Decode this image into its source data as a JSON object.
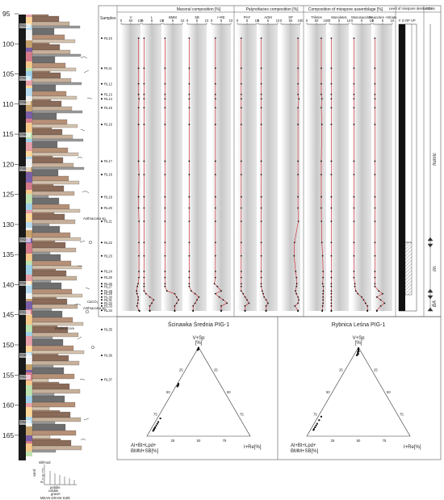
{
  "depth_axis": {
    "ticks": [
      95,
      100,
      105,
      110,
      115,
      120,
      125,
      130,
      135,
      140,
      145,
      150,
      155,
      160,
      165
    ]
  },
  "facies_labels": [
    "FA1",
    "FA4",
    "FA6",
    "FA6",
    "FA5",
    "FA3",
    "FA4",
    "FA1",
    "FA5",
    "FA1",
    "FA4"
  ],
  "lithology_notes": {
    "anthracosia_upper": "Anthracosia sp.",
    "calc": "CaCO₃",
    "anthracosia_lower": "Anthracosia sp.",
    "crushed": "crushed core"
  },
  "grain_size_legend": {
    "labels": [
      "silt/mud",
      "c",
      "f",
      "m",
      "c",
      "vc",
      "sand",
      "pebble",
      "cobble",
      "gravel"
    ],
    "axis_title": "MEAN GRAIN SIZE"
  },
  "samples": {
    "header": "Samples",
    "list": [
      {
        "id": "RL10",
        "depth": 97.5
      },
      {
        "id": "RL11",
        "depth": 102.9
      },
      {
        "id": "RL12",
        "depth": 105.7
      },
      {
        "id": "RL13",
        "depth": 107.6
      },
      {
        "id": "RL14",
        "depth": 108.4
      },
      {
        "id": "RL15",
        "depth": 110.0
      },
      {
        "id": "RL16",
        "depth": 113.0
      },
      {
        "id": "RL17",
        "depth": 119.6
      },
      {
        "id": "RL18",
        "depth": 122.0
      },
      {
        "id": "RL19",
        "depth": 126.0
      },
      {
        "id": "RL20",
        "depth": 128.0
      },
      {
        "id": "RL21",
        "depth": 130.4
      },
      {
        "id": "RL22",
        "depth": 134.2
      },
      {
        "id": "RL23",
        "depth": 136.6
      },
      {
        "id": "RL24",
        "depth": 139.4
      },
      {
        "id": "RL25",
        "depth": 140.5
      },
      {
        "id": "RL26",
        "depth": 141.6
      },
      {
        "id": "RL27",
        "depth": 142.1
      },
      {
        "id": "RL28",
        "depth": 142.9
      },
      {
        "id": "RL29",
        "depth": 143.4
      },
      {
        "id": "RL30",
        "depth": 144.0
      },
      {
        "id": "RL31",
        "depth": 144.5
      },
      {
        "id": "RL32",
        "depth": 145.1
      },
      {
        "id": "RL33",
        "depth": 145.6
      },
      {
        "id": "RL34",
        "depth": 146.4
      },
      {
        "id": "RL35",
        "depth": 147.6
      },
      {
        "id": "RL36",
        "depth": 152.5
      },
      {
        "id": "RL37",
        "depth": 158.5
      }
    ]
  },
  "groups": [
    {
      "title": "Maceral composition [%]"
    },
    {
      "title": "Palynofacies composition [%]"
    },
    {
      "title": "Composition of miospore assemblage [%]"
    },
    {
      "title": "Level of miospore destruction"
    },
    {
      "title": "MCAs"
    }
  ],
  "panels": [
    {
      "name": "V",
      "ticks": [
        "0",
        "50",
        "100"
      ],
      "max": 100,
      "values": [
        90,
        90,
        90,
        90,
        92,
        90,
        90,
        90,
        92,
        90,
        90,
        92,
        92,
        92,
        92,
        92,
        88,
        84,
        80,
        82,
        88,
        88,
        86,
        82,
        92,
        95,
        95,
        95
      ]
    },
    {
      "name": "L",
      "ticks": [
        "0",
        "5",
        "10"
      ],
      "max": 10,
      "values": [
        1.0,
        1.0,
        1.0,
        1.0,
        1.0,
        1.0,
        1.0,
        1.0,
        1.0,
        1.0,
        1.0,
        1.0,
        1.0,
        1.0,
        1.0,
        1.0,
        1.0,
        1.0,
        1.0,
        2.0,
        4.0,
        6.0,
        5.0,
        4.0,
        4.0,
        4.0,
        4.0,
        4.0
      ]
    },
    {
      "name": "BMM",
      "ticks": [
        "0",
        "5",
        "10"
      ],
      "max": 10,
      "values": [
        1.0,
        1.0,
        1.0,
        1.0,
        1.0,
        1.0,
        1.0,
        1.0,
        1.0,
        1.0,
        1.0,
        1.0,
        1.0,
        1.0,
        1.0,
        1.0,
        1.0,
        1.0,
        2.0,
        6.0,
        7.0,
        8.0,
        7.0,
        6.0,
        6.0,
        6.0,
        6.0,
        6.0
      ]
    },
    {
      "name": "SB",
      "ticks": [
        "0",
        "5",
        "10"
      ],
      "max": 10,
      "values": [
        1.0,
        1.0,
        1.0,
        1.0,
        1.0,
        1.0,
        1.0,
        1.0,
        1.0,
        1.0,
        1.0,
        1.0,
        1.0,
        1.0,
        1.0,
        1.0,
        1.0,
        1.0,
        2.0,
        4.0,
        6.0,
        5.0,
        4.0,
        3.0,
        3.0,
        3.0,
        3.0,
        3.0
      ]
    },
    {
      "name": "I+RE",
      "ticks": [
        "0",
        "5",
        "10"
      ],
      "max": 10,
      "values": [
        2.0,
        2.0,
        2.0,
        2.0,
        2.0,
        2.0,
        2.0,
        2.0,
        2.0,
        2.0,
        2.0,
        2.0,
        2.0,
        2.0,
        2.0,
        2.0,
        1.5,
        3.0,
        5.0,
        2.0,
        4.0,
        6.0,
        8.0,
        5.0,
        5.0,
        5.0,
        5.0,
        5.0
      ]
    },
    {
      "name": "PHY",
      "ticks": [
        "0",
        "5",
        "10"
      ],
      "max": 10,
      "values": [
        2.0,
        2.0,
        2.0,
        2.0,
        2.0,
        2.0,
        2.0,
        2.0,
        2.0,
        2.0,
        2.0,
        2.0,
        2.0,
        2.0,
        2.0,
        2.0,
        2.0,
        2.0,
        2.0,
        3.0,
        4.0,
        5.0,
        6.0,
        4.0,
        4.0,
        4.0,
        4.0,
        4.0
      ]
    },
    {
      "name": "AOM",
      "ticks": [
        "0",
        "5",
        "10"
      ],
      "max": 10,
      "values": [
        1.5,
        1.5,
        1.5,
        1.5,
        1.5,
        1.5,
        1.5,
        1.5,
        1.5,
        1.5,
        1.5,
        1.5,
        1.5,
        1.5,
        1.5,
        1.5,
        1.5,
        1.5,
        2.0,
        2.5,
        3.0,
        4.0,
        5.0,
        4.0,
        4.0,
        4.0,
        4.0,
        4.0
      ]
    },
    {
      "name": "SP",
      "ticks": [
        "0",
        "50",
        "100"
      ],
      "max": 100,
      "values": [
        88,
        88,
        88,
        88,
        92,
        88,
        88,
        88,
        88,
        88,
        88,
        90,
        70,
        68,
        76,
        80,
        82,
        80,
        75,
        80,
        88,
        92,
        88,
        72,
        88,
        88,
        88,
        88
      ]
    },
    {
      "name": "Triletes",
      "ticks": [
        "0",
        "50",
        "100"
      ],
      "max": 100,
      "values": [
        75,
        75,
        75,
        75,
        78,
        75,
        78,
        75,
        75,
        75,
        75,
        76,
        78,
        82,
        84,
        84,
        82,
        85,
        85,
        84,
        84,
        84,
        84,
        82,
        80,
        80,
        80,
        80
      ]
    },
    {
      "name": "Monoletes",
      "ticks": [
        "0",
        "5",
        "10"
      ],
      "max": 10,
      "values": [
        1.0,
        1.0,
        1.0,
        1.0,
        1.0,
        1.0,
        1.0,
        1.0,
        1.0,
        1.0,
        1.0,
        1.0,
        1.0,
        1.0,
        1.0,
        1.0,
        1.0,
        1.0,
        1.0,
        1.0,
        1.0,
        1.0,
        1.0,
        1.0,
        1.0,
        1.0,
        1.0,
        1.0
      ]
    },
    {
      "name": "Monosaccites",
      "ticks": [
        "0",
        "5",
        "10"
      ],
      "max": 10,
      "values": [
        1.0,
        1.0,
        1.0,
        1.0,
        1.0,
        1.0,
        1.0,
        1.0,
        1.0,
        1.0,
        1.0,
        1.0,
        1.0,
        1.0,
        1.0,
        1.0,
        1.5,
        1.5,
        2.0,
        3.0,
        5.0,
        6.0,
        7.0,
        8.0,
        8.0,
        8.0,
        8.0,
        8.0
      ]
    },
    {
      "name": "Disaccites +Striate",
      "ticks": [
        "0",
        "5",
        "10"
      ],
      "max": 10,
      "values": [
        1.0,
        1.0,
        1.0,
        1.0,
        1.0,
        1.0,
        1.0,
        1.0,
        1.0,
        1.0,
        1.0,
        1.0,
        1.0,
        1.0,
        1.0,
        1.0,
        1.0,
        1.0,
        3.0,
        5.0,
        2.0,
        4.0,
        6.0,
        4.0,
        2.0,
        2.0,
        2.0,
        2.0
      ]
    }
  ],
  "destruction": {
    "header": "F G RP VP"
  },
  "mca": {
    "labels": [
      "humic",
      "im.",
      "BA"
    ]
  },
  "ternary": [
    {
      "title": "Ścinawka Średnia PIG-1",
      "top_label": "V+Sp",
      "top_unit": "[%]",
      "left_label": "Al+Bt+Lpd+",
      "left_label2": "BMM+SB[%]",
      "right_label": "I+Re[%]",
      "left_ticks": [
        "25",
        "50",
        "75"
      ],
      "right_ticks": [
        "25",
        "50",
        "75"
      ],
      "bottom_ticks": [
        "25",
        "50",
        "75"
      ],
      "points": [
        {
          "top": 99,
          "left": 0.5
        },
        {
          "top": 98.5,
          "left": 1
        },
        {
          "top": 98,
          "left": 1.5
        },
        {
          "top": 99.5,
          "left": 0.3
        },
        {
          "top": 97.5,
          "left": 2
        },
        {
          "top": 97,
          "left": 2.5
        },
        {
          "top": 98,
          "left": 1
        },
        {
          "top": 59,
          "left": 40
        },
        {
          "top": 58,
          "left": 40.5
        },
        {
          "top": 57,
          "left": 41.5
        },
        {
          "top": 56.5,
          "left": 42
        },
        {
          "top": 56,
          "left": 42.5
        },
        {
          "top": 20,
          "left": 77
        },
        {
          "top": 16,
          "left": 81
        },
        {
          "top": 14,
          "left": 83
        },
        {
          "top": 12,
          "left": 85
        },
        {
          "top": 10,
          "left": 87
        },
        {
          "top": 9,
          "left": 88
        },
        {
          "top": 8,
          "left": 89
        },
        {
          "top": 7,
          "left": 90
        },
        {
          "top": 6,
          "left": 91
        }
      ]
    },
    {
      "title": "Rybnica Leśna PIG-1",
      "top_label": "V+Sp",
      "top_unit": "[%]",
      "left_label": "Al+Bt+Lpd+",
      "left_label2": "BMM+SB[%]",
      "right_label": "I+Re[%]",
      "left_ticks": [
        "25",
        "50",
        "75"
      ],
      "right_ticks": [
        "25",
        "50",
        "75"
      ],
      "bottom_ticks": [
        "25",
        "50",
        "75"
      ],
      "points": [
        {
          "top": 99,
          "left": 0.5
        },
        {
          "top": 98,
          "left": 1
        },
        {
          "top": 97,
          "left": 1.5
        },
        {
          "top": 96,
          "left": 2
        },
        {
          "top": 95,
          "left": 3
        },
        {
          "top": 94,
          "left": 3.5
        },
        {
          "top": 93,
          "left": 4
        },
        {
          "top": 92,
          "left": 5
        },
        {
          "top": 91,
          "left": 6
        },
        {
          "top": 92.5,
          "left": 4
        },
        {
          "top": 95.5,
          "left": 2
        },
        {
          "top": 22,
          "left": 75
        },
        {
          "top": 18,
          "left": 79
        },
        {
          "top": 14,
          "left": 83
        },
        {
          "top": 12,
          "left": 85
        },
        {
          "top": 10,
          "left": 87
        },
        {
          "top": 8,
          "left": 89
        },
        {
          "top": 7,
          "left": 90
        }
      ]
    }
  ]
}
